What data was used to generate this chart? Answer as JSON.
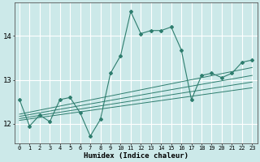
{
  "xlabel": "Humidex (Indice chaleur)",
  "bg_color": "#cce9e9",
  "grid_color": "#ffffff",
  "line_color": "#2e7d6e",
  "xlim": [
    -0.5,
    23.5
  ],
  "ylim": [
    11.55,
    14.75
  ],
  "xticks": [
    0,
    1,
    2,
    3,
    4,
    5,
    6,
    7,
    8,
    9,
    10,
    11,
    12,
    13,
    14,
    15,
    16,
    17,
    18,
    19,
    20,
    21,
    22,
    23
  ],
  "yticks": [
    12,
    13,
    14
  ],
  "main_x": [
    0,
    1,
    2,
    3,
    4,
    5,
    6,
    7,
    8,
    9,
    10,
    11,
    12,
    13,
    14,
    15,
    16,
    17,
    18,
    19,
    20,
    21,
    22,
    23
  ],
  "main_y": [
    12.55,
    11.95,
    12.2,
    12.05,
    12.55,
    12.6,
    12.25,
    11.72,
    12.1,
    13.15,
    13.55,
    14.55,
    14.05,
    14.12,
    14.12,
    14.2,
    13.68,
    12.55,
    13.1,
    13.15,
    13.05,
    13.15,
    13.4,
    13.45
  ],
  "trend1_x": [
    0,
    23
  ],
  "trend1_y": [
    12.08,
    12.82
  ],
  "trend2_x": [
    0,
    23
  ],
  "trend2_y": [
    12.12,
    12.95
  ],
  "trend3_x": [
    0,
    23
  ],
  "trend3_y": [
    12.17,
    13.1
  ],
  "trend4_x": [
    0,
    23
  ],
  "trend4_y": [
    12.22,
    13.28
  ]
}
